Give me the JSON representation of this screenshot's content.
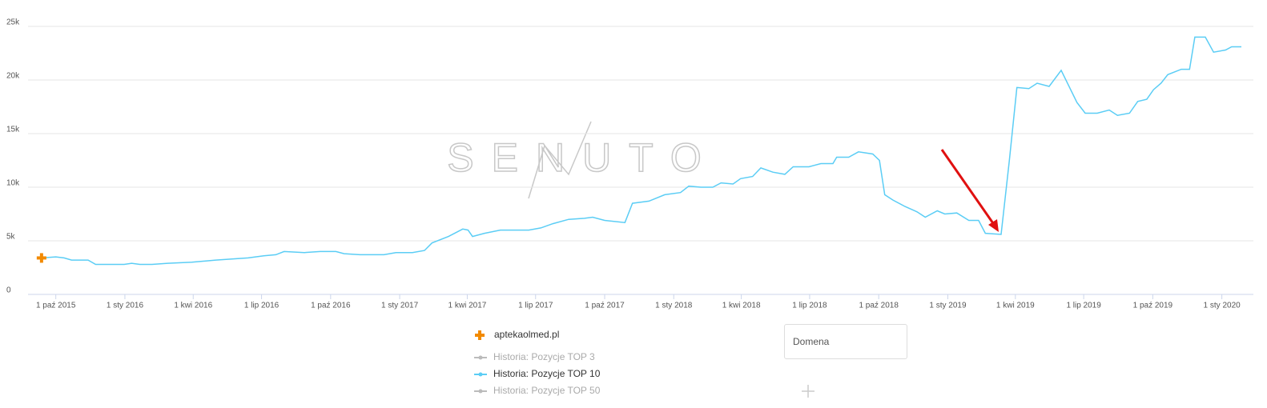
{
  "chart_data": {
    "type": "line",
    "watermark": "SENUTO",
    "x": [
      "2015-09-12",
      "2015-10-01",
      "2015-10-12",
      "2015-10-22",
      "2015-11-13",
      "2015-11-23",
      "2015-12-15",
      "2015-12-31",
      "2016-01-10",
      "2016-01-21",
      "2016-02-06",
      "2016-02-27",
      "2016-03-30",
      "2016-05-01",
      "2016-06-13",
      "2016-07-04",
      "2016-07-20",
      "2016-07-31",
      "2016-08-27",
      "2016-09-17",
      "2016-10-08",
      "2016-10-19",
      "2016-11-09",
      "2016-12-11",
      "2016-12-27",
      "2017-01-18",
      "2017-02-03",
      "2017-02-13",
      "2017-03-07",
      "2017-03-26",
      "2017-04-02",
      "2017-04-08",
      "2017-04-24",
      "2017-05-15",
      "2017-06-22",
      "2017-07-08",
      "2017-07-24",
      "2017-08-14",
      "2017-09-04",
      "2017-09-15",
      "2017-10-01",
      "2017-10-28",
      "2017-11-07",
      "2017-11-29",
      "2017-12-20",
      "2018-01-10",
      "2018-01-21",
      "2018-02-06",
      "2018-02-22",
      "2018-03-05",
      "2018-03-21",
      "2018-03-31",
      "2018-04-16",
      "2018-04-27",
      "2018-05-13",
      "2018-05-29",
      "2018-06-09",
      "2018-06-30",
      "2018-07-16",
      "2018-08-01",
      "2018-08-06",
      "2018-08-22",
      "2018-09-04",
      "2018-09-23",
      "2018-10-02",
      "2018-10-09",
      "2018-10-20",
      "2018-11-05",
      "2018-11-21",
      "2018-12-02",
      "2018-12-18",
      "2018-12-28",
      "2019-01-13",
      "2019-01-29",
      "2019-02-11",
      "2019-02-20",
      "2019-03-13",
      "2019-03-24",
      "2019-04-03",
      "2019-04-19",
      "2019-04-30",
      "2019-05-16",
      "2019-06-01",
      "2019-06-22",
      "2019-07-03",
      "2019-07-19",
      "2019-08-04",
      "2019-08-15",
      "2019-08-31",
      "2019-09-11",
      "2019-09-23",
      "2019-10-02",
      "2019-10-12",
      "2019-10-21",
      "2019-11-08",
      "2019-11-19",
      "2019-11-26",
      "2019-12-10",
      "2019-12-21",
      "2020-01-06",
      "2020-01-14",
      "2020-01-27"
    ],
    "series": [
      {
        "name": "Historia: Pozycje TOP 10",
        "color": "#5bcdf5",
        "values": [
          3400,
          3500,
          3400,
          3200,
          3200,
          2800,
          2800,
          2800,
          2900,
          2800,
          2800,
          2900,
          3000,
          3200,
          3400,
          3600,
          3700,
          4000,
          3900,
          4000,
          4000,
          3800,
          3700,
          3700,
          3900,
          3900,
          4100,
          4800,
          5400,
          6100,
          6000,
          5400,
          5700,
          6000,
          6000,
          6200,
          6600,
          7000,
          7100,
          7200,
          6900,
          6700,
          8500,
          8700,
          9300,
          9500,
          10100,
          10000,
          10000,
          10400,
          10300,
          10800,
          11000,
          11800,
          11400,
          11200,
          11900,
          11900,
          12200,
          12200,
          12800,
          12800,
          13300,
          13100,
          12500,
          9300,
          8800,
          8200,
          7700,
          7200,
          7800,
          7500,
          7600,
          6900,
          6900,
          5700,
          5600,
          12500,
          19300,
          19200,
          19700,
          19400,
          20900,
          17900,
          16900,
          16900,
          17200,
          16700,
          16900,
          18000,
          18200,
          19100,
          19700,
          20500,
          21000,
          21000,
          24000,
          24000,
          22600,
          22800,
          23100,
          23100
        ]
      }
    ],
    "xlim": [
      "2015-08-25",
      "2020-02-12"
    ],
    "xticks": [
      {
        "value": "2015-10-01",
        "label": "1 paź 2015"
      },
      {
        "value": "2016-01-01",
        "label": "1 sty 2016"
      },
      {
        "value": "2016-04-01",
        "label": "1 kwi 2016"
      },
      {
        "value": "2016-07-01",
        "label": "1 lip 2016"
      },
      {
        "value": "2016-10-01",
        "label": "1 paź 2016"
      },
      {
        "value": "2017-01-01",
        "label": "1 sty 2017"
      },
      {
        "value": "2017-04-01",
        "label": "1 kwi 2017"
      },
      {
        "value": "2017-07-01",
        "label": "1 lip 2017"
      },
      {
        "value": "2017-10-01",
        "label": "1 paź 2017"
      },
      {
        "value": "2018-01-01",
        "label": "1 sty 2018"
      },
      {
        "value": "2018-04-01",
        "label": "1 kwi 2018"
      },
      {
        "value": "2018-07-01",
        "label": "1 lip 2018"
      },
      {
        "value": "2018-10-01",
        "label": "1 paź 2018"
      },
      {
        "value": "2019-01-01",
        "label": "1 sty 2019"
      },
      {
        "value": "2019-04-01",
        "label": "1 kwi 2019"
      },
      {
        "value": "2019-07-01",
        "label": "1 lip 2019"
      },
      {
        "value": "2019-10-01",
        "label": "1 paź 2019"
      },
      {
        "value": "2020-01-01",
        "label": "1 sty 2020"
      }
    ],
    "ylim": [
      0,
      25000
    ],
    "yticks": [
      0,
      {
        "value": 5000,
        "label": "5k"
      },
      {
        "value": 10000,
        "label": "10k"
      },
      {
        "value": 15000,
        "label": "15k"
      },
      {
        "value": 20000,
        "label": "20k"
      },
      {
        "value": 25000,
        "label": "25k"
      }
    ],
    "grid": true,
    "legend": {
      "domain": "aptekaolmed.pl",
      "domain_color": "#f28a00",
      "items": [
        {
          "name": "Historia: Pozycje TOP 3",
          "color": "#bbbbbb"
        },
        {
          "name": "Historia: Pozycje TOP 10",
          "color": "#5bcdf5"
        },
        {
          "name": "Historia: Pozycje TOP 50",
          "color": "#bbbbbb"
        }
      ]
    },
    "input_placeholder": "Domena"
  }
}
